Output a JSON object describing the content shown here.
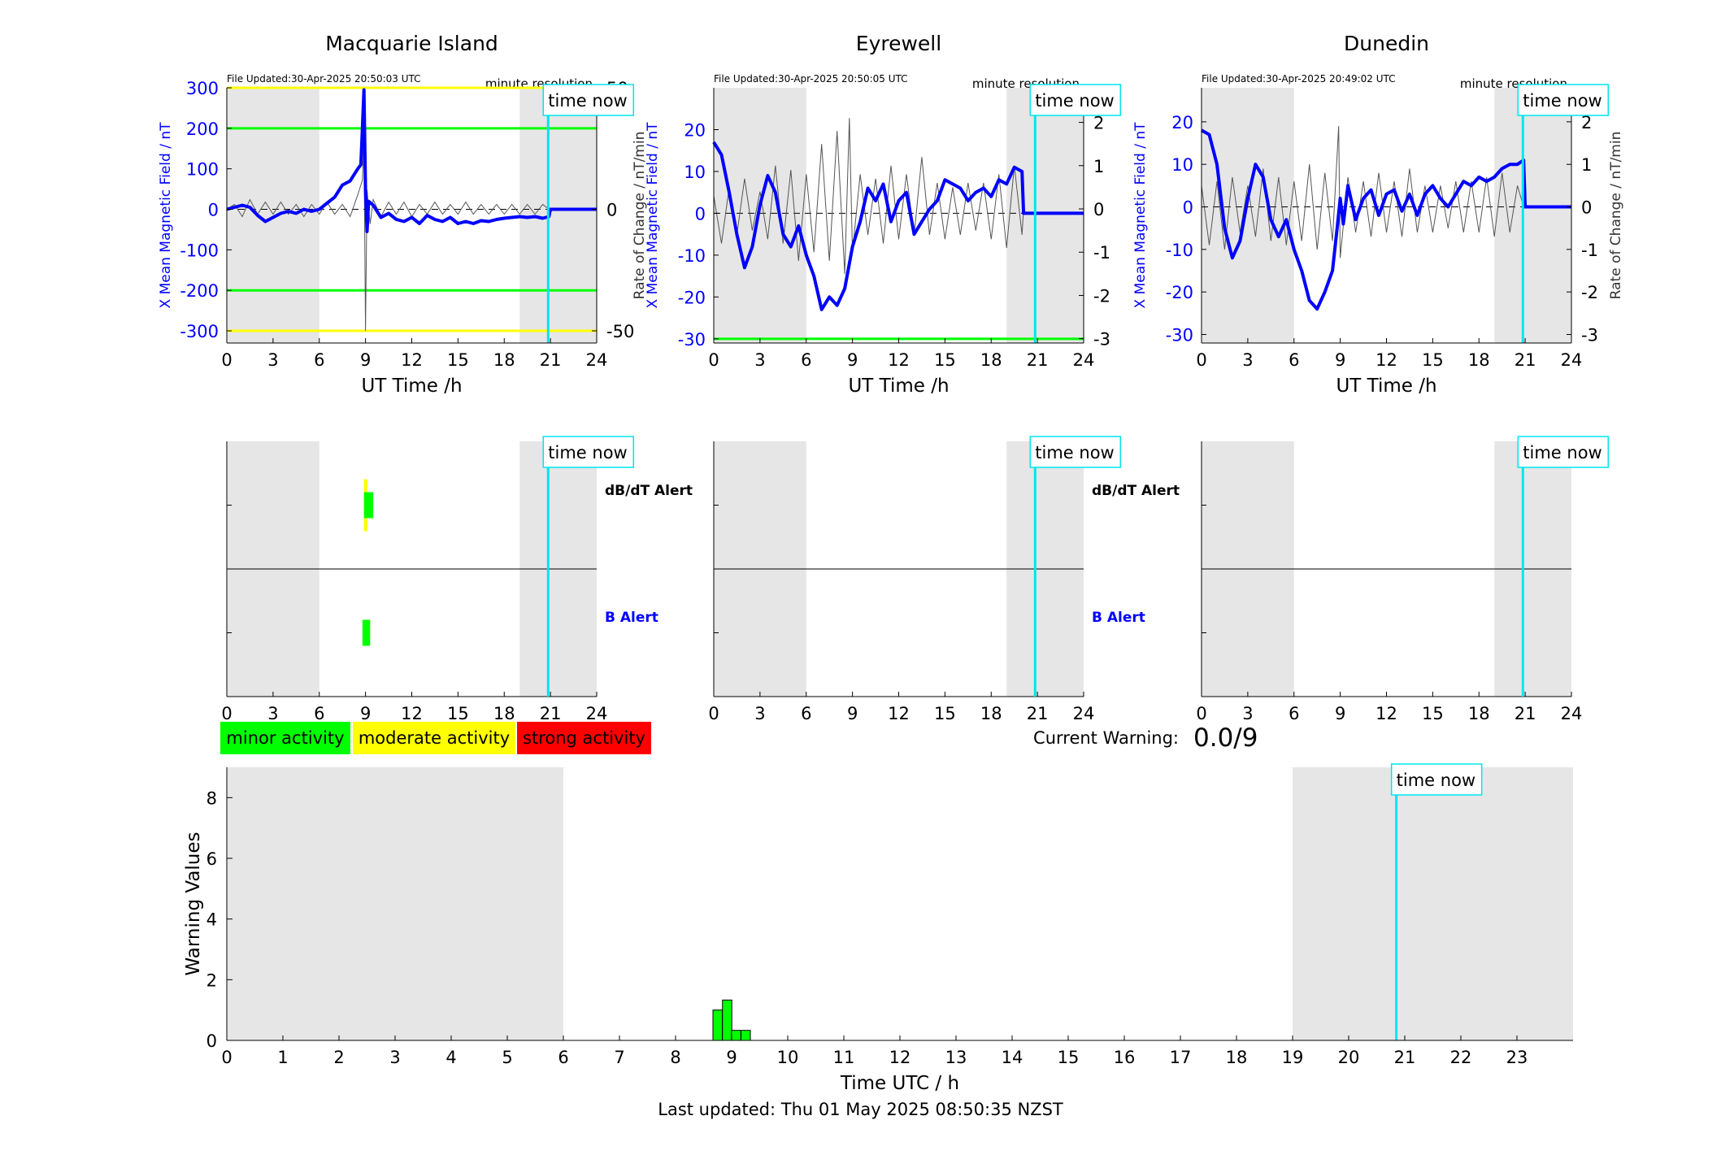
{
  "page": {
    "footer": "Last updated: Thu 01 May 2025 08:50:35 NZST"
  },
  "labels": {
    "time_now": "time now",
    "minute_resolution": "minute resolution",
    "x_axis_label": "UT Time /h",
    "dbdt_alert": "dB/dT Alert",
    "b_alert": "B Alert",
    "current_warning_label": "Current Warning:",
    "current_warning_value": "0.0/9"
  },
  "legend": [
    {
      "label": "minor activity",
      "color": "#00ff00"
    },
    {
      "label": "moderate activity",
      "color": "#ffff00"
    },
    {
      "label": "strong activity",
      "color": "#ff0000"
    }
  ],
  "colors": {
    "field": "#0000ff",
    "rate": "#555555",
    "shade": "#e6e6e6",
    "time_now": "#00e5ee",
    "green_line": "#00ff00",
    "yellow_line": "#ffff00",
    "minor": "#00ff00",
    "moderate": "#ffff00"
  },
  "chart_data": [
    {
      "type": "line",
      "title": "Macquarie Island",
      "file_updated": "File Updated:30-Apr-2025 20:50:03 UTC",
      "xlabel": "UT Time /h",
      "ylabel_left": "X Mean Magnetic Field / nT",
      "ylabel_right": "",
      "xlim": [
        0,
        24
      ],
      "x_ticks": [
        0,
        3,
        6,
        9,
        12,
        15,
        18,
        21,
        24
      ],
      "ylim_left": [
        -330,
        300
      ],
      "y_ticks_left": [
        -300,
        -200,
        -100,
        0,
        100,
        200,
        300
      ],
      "ylim_right": [
        -55,
        50
      ],
      "y_ticks_right": [
        -50,
        0,
        50
      ],
      "shaded_hours": [
        [
          0,
          6
        ],
        [
          19,
          24
        ]
      ],
      "time_now": 20.85,
      "threshold_lines": [
        {
          "value": 300,
          "color": "yellow"
        },
        {
          "value": 200,
          "color": "green"
        },
        {
          "value": -200,
          "color": "green"
        },
        {
          "value": -300,
          "color": "yellow"
        }
      ],
      "field_series": [
        [
          0,
          0
        ],
        [
          0.5,
          5
        ],
        [
          1,
          10
        ],
        [
          1.5,
          5
        ],
        [
          2,
          -15
        ],
        [
          2.5,
          -30
        ],
        [
          3,
          -20
        ],
        [
          3.5,
          -10
        ],
        [
          4,
          -5
        ],
        [
          4.5,
          -10
        ],
        [
          5,
          0
        ],
        [
          5.5,
          -5
        ],
        [
          6,
          0
        ],
        [
          6.5,
          15
        ],
        [
          7,
          30
        ],
        [
          7.5,
          60
        ],
        [
          8,
          70
        ],
        [
          8.5,
          100
        ],
        [
          8.7,
          110
        ],
        [
          8.8,
          200
        ],
        [
          8.9,
          295
        ],
        [
          9.0,
          50
        ],
        [
          9.1,
          -55
        ],
        [
          9.2,
          20
        ],
        [
          9.5,
          10
        ],
        [
          10,
          -20
        ],
        [
          10.5,
          -10
        ],
        [
          11,
          -25
        ],
        [
          11.5,
          -30
        ],
        [
          12,
          -20
        ],
        [
          12.5,
          -35
        ],
        [
          13,
          -15
        ],
        [
          13.5,
          -25
        ],
        [
          14,
          -30
        ],
        [
          14.5,
          -20
        ],
        [
          15,
          -35
        ],
        [
          15.5,
          -30
        ],
        [
          16,
          -35
        ],
        [
          16.5,
          -28
        ],
        [
          17,
          -30
        ],
        [
          17.5,
          -25
        ],
        [
          18,
          -22
        ],
        [
          18.5,
          -20
        ],
        [
          19,
          -18
        ],
        [
          19.5,
          -20
        ],
        [
          20,
          -18
        ],
        [
          20.5,
          -22
        ],
        [
          20.9,
          -18
        ],
        [
          21,
          0
        ],
        [
          24,
          0
        ]
      ],
      "rate_series": [
        [
          0,
          0
        ],
        [
          0.5,
          2
        ],
        [
          1,
          -3
        ],
        [
          1.5,
          4
        ],
        [
          2,
          -2
        ],
        [
          2.5,
          3
        ],
        [
          3,
          -2
        ],
        [
          3.5,
          3
        ],
        [
          4,
          -2
        ],
        [
          4.5,
          2
        ],
        [
          5,
          -3
        ],
        [
          5.5,
          2
        ],
        [
          6,
          -2
        ],
        [
          6.5,
          3
        ],
        [
          7,
          -2
        ],
        [
          7.5,
          2
        ],
        [
          8,
          -3
        ],
        [
          8.5,
          6
        ],
        [
          8.8,
          12
        ],
        [
          8.9,
          30
        ],
        [
          9.0,
          -50
        ],
        [
          9.1,
          8
        ],
        [
          9.3,
          -6
        ],
        [
          9.5,
          4
        ],
        [
          10,
          -3
        ],
        [
          10.5,
          3
        ],
        [
          11,
          -2
        ],
        [
          11.5,
          3
        ],
        [
          12,
          -3
        ],
        [
          12.5,
          2
        ],
        [
          13,
          -2
        ],
        [
          13.5,
          3
        ],
        [
          14,
          -2
        ],
        [
          14.5,
          2
        ],
        [
          15,
          -2
        ],
        [
          15.5,
          3
        ],
        [
          16,
          -2
        ],
        [
          16.5,
          2
        ],
        [
          17,
          -2
        ],
        [
          17.5,
          2
        ],
        [
          18,
          -2
        ],
        [
          18.5,
          2
        ],
        [
          19,
          -2
        ],
        [
          19.5,
          2
        ],
        [
          20,
          -2
        ],
        [
          20.5,
          2
        ],
        [
          20.9,
          0
        ]
      ],
      "alerts": {
        "dbdt": [
          {
            "start": 8.9,
            "end": 9.1,
            "level": "moderate"
          },
          {
            "start": 8.9,
            "end": 9.5,
            "level": "minor"
          }
        ],
        "b": [
          {
            "start": 8.8,
            "end": 9.3,
            "level": "minor"
          }
        ]
      }
    },
    {
      "type": "line",
      "title": "Eyrewell",
      "file_updated": "File Updated:30-Apr-2025 20:50:05 UTC",
      "xlabel": "UT Time /h",
      "ylabel_left": "X Mean Magnetic Field / nT",
      "ylabel_right": "Rate of Change / nT/min",
      "xlim": [
        0,
        24
      ],
      "x_ticks": [
        0,
        3,
        6,
        9,
        12,
        15,
        18,
        21,
        24
      ],
      "ylim_left": [
        -31,
        30
      ],
      "y_ticks_left": [
        -30,
        -20,
        -10,
        0,
        10,
        20
      ],
      "ylim_right": [
        -3.1,
        2.8
      ],
      "y_ticks_right": [
        -3,
        -2,
        -1,
        0,
        1,
        2
      ],
      "shaded_hours": [
        [
          0,
          6
        ],
        [
          19,
          24
        ]
      ],
      "time_now": 20.85,
      "threshold_lines": [
        {
          "value": -30,
          "color": "green"
        }
      ],
      "field_series": [
        [
          0,
          17
        ],
        [
          0.5,
          14
        ],
        [
          1,
          5
        ],
        [
          1.5,
          -5
        ],
        [
          2,
          -13
        ],
        [
          2.5,
          -8
        ],
        [
          3,
          2
        ],
        [
          3.5,
          9
        ],
        [
          4,
          5
        ],
        [
          4.5,
          -5
        ],
        [
          5,
          -8
        ],
        [
          5.5,
          -3
        ],
        [
          6,
          -10
        ],
        [
          6.5,
          -15
        ],
        [
          7,
          -23
        ],
        [
          7.5,
          -20
        ],
        [
          8,
          -22
        ],
        [
          8.5,
          -18
        ],
        [
          9,
          -8
        ],
        [
          9.5,
          -2
        ],
        [
          10,
          6
        ],
        [
          10.5,
          3
        ],
        [
          11,
          7
        ],
        [
          11.5,
          -2
        ],
        [
          12,
          3
        ],
        [
          12.5,
          5
        ],
        [
          13,
          -5
        ],
        [
          13.5,
          -2
        ],
        [
          14,
          1
        ],
        [
          14.5,
          3
        ],
        [
          15,
          8
        ],
        [
          15.5,
          7
        ],
        [
          16,
          6
        ],
        [
          16.5,
          3
        ],
        [
          17,
          5
        ],
        [
          17.5,
          6
        ],
        [
          18,
          4
        ],
        [
          18.5,
          8
        ],
        [
          19,
          7
        ],
        [
          19.5,
          11
        ],
        [
          20,
          10
        ],
        [
          20.1,
          0
        ],
        [
          24,
          0
        ]
      ],
      "rate_series": [
        [
          0,
          0.3
        ],
        [
          0.5,
          -0.8
        ],
        [
          1,
          0.5
        ],
        [
          1.5,
          -0.6
        ],
        [
          2,
          0.7
        ],
        [
          2.5,
          -0.5
        ],
        [
          3,
          0.4
        ],
        [
          3.5,
          -0.7
        ],
        [
          4,
          1.0
        ],
        [
          4.5,
          -0.8
        ],
        [
          5,
          0.9
        ],
        [
          5.5,
          -1.2
        ],
        [
          6,
          0.8
        ],
        [
          6.5,
          -1.0
        ],
        [
          7,
          1.5
        ],
        [
          7.5,
          -1.2
        ],
        [
          8,
          1.8
        ],
        [
          8.5,
          -1.5
        ],
        [
          8.8,
          2.1
        ],
        [
          9,
          -1.0
        ],
        [
          9.5,
          0.8
        ],
        [
          10,
          -0.6
        ],
        [
          10.5,
          0.7
        ],
        [
          11,
          -0.8
        ],
        [
          11.5,
          1.0
        ],
        [
          12,
          -0.7
        ],
        [
          12.5,
          0.8
        ],
        [
          13,
          -0.6
        ],
        [
          13.5,
          1.2
        ],
        [
          14,
          -0.6
        ],
        [
          14.5,
          0.6
        ],
        [
          15,
          -0.7
        ],
        [
          15.5,
          0.5
        ],
        [
          16,
          -0.6
        ],
        [
          16.5,
          0.6
        ],
        [
          17,
          -0.5
        ],
        [
          17.5,
          0.6
        ],
        [
          18,
          -0.7
        ],
        [
          18.5,
          0.8
        ],
        [
          19,
          -0.9
        ],
        [
          19.5,
          1.0
        ],
        [
          20,
          -0.6
        ],
        [
          20.1,
          0
        ]
      ],
      "alerts": {
        "dbdt": [],
        "b": []
      }
    },
    {
      "type": "line",
      "title": "Dunedin",
      "file_updated": "File Updated:30-Apr-2025 20:49:02 UTC",
      "xlabel": "UT Time /h",
      "ylabel_left": "X Mean Magnetic Field / nT",
      "ylabel_right": "Rate of Change / nT/min",
      "xlim": [
        0,
        24
      ],
      "x_ticks": [
        0,
        3,
        6,
        9,
        12,
        15,
        18,
        21,
        24
      ],
      "ylim_left": [
        -32,
        28
      ],
      "y_ticks_left": [
        -30,
        -20,
        -10,
        0,
        10,
        20
      ],
      "ylim_right": [
        -3.2,
        2.8
      ],
      "y_ticks_right": [
        -3,
        -2,
        -1,
        0,
        1,
        2
      ],
      "shaded_hours": [
        [
          0,
          6
        ],
        [
          19,
          24
        ]
      ],
      "time_now": 20.85,
      "threshold_lines": [],
      "field_series": [
        [
          0,
          18
        ],
        [
          0.5,
          17
        ],
        [
          1,
          10
        ],
        [
          1.5,
          -5
        ],
        [
          2,
          -12
        ],
        [
          2.5,
          -8
        ],
        [
          3,
          2
        ],
        [
          3.5,
          10
        ],
        [
          4,
          7
        ],
        [
          4.5,
          -3
        ],
        [
          5,
          -7
        ],
        [
          5.5,
          -3
        ],
        [
          6,
          -10
        ],
        [
          6.5,
          -15
        ],
        [
          7,
          -22
        ],
        [
          7.5,
          -24
        ],
        [
          8,
          -20
        ],
        [
          8.5,
          -15
        ],
        [
          8.8,
          -5
        ],
        [
          9,
          2
        ],
        [
          9.2,
          -4
        ],
        [
          9.5,
          5
        ],
        [
          10,
          -3
        ],
        [
          10.5,
          2
        ],
        [
          11,
          4
        ],
        [
          11.5,
          -2
        ],
        [
          12,
          3
        ],
        [
          12.5,
          4
        ],
        [
          13,
          -1
        ],
        [
          13.5,
          3
        ],
        [
          14,
          -2
        ],
        [
          14.5,
          3
        ],
        [
          15,
          5
        ],
        [
          15.5,
          2
        ],
        [
          16,
          0
        ],
        [
          16.5,
          3
        ],
        [
          17,
          6
        ],
        [
          17.5,
          5
        ],
        [
          18,
          7
        ],
        [
          18.5,
          6
        ],
        [
          19,
          7
        ],
        [
          19.5,
          9
        ],
        [
          20,
          10
        ],
        [
          20.5,
          10
        ],
        [
          20.9,
          11
        ],
        [
          21,
          0
        ],
        [
          24,
          0
        ]
      ],
      "rate_series": [
        [
          0,
          0.5
        ],
        [
          0.5,
          -0.9
        ],
        [
          1,
          0.6
        ],
        [
          1.5,
          -1.0
        ],
        [
          2,
          0.7
        ],
        [
          2.5,
          -0.6
        ],
        [
          3,
          0.5
        ],
        [
          3.5,
          -0.7
        ],
        [
          4,
          0.9
        ],
        [
          4.5,
          -0.8
        ],
        [
          5,
          0.7
        ],
        [
          5.5,
          -0.9
        ],
        [
          6,
          0.6
        ],
        [
          6.5,
          -0.8
        ],
        [
          7,
          1.0
        ],
        [
          7.5,
          -1.0
        ],
        [
          8,
          0.8
        ],
        [
          8.5,
          -0.8
        ],
        [
          8.9,
          1.9
        ],
        [
          9,
          -1.2
        ],
        [
          9.5,
          0.7
        ],
        [
          10,
          -0.6
        ],
        [
          10.5,
          0.6
        ],
        [
          11,
          -0.7
        ],
        [
          11.5,
          0.8
        ],
        [
          12,
          -0.6
        ],
        [
          12.5,
          0.6
        ],
        [
          13,
          -0.7
        ],
        [
          13.5,
          0.9
        ],
        [
          14,
          -0.6
        ],
        [
          14.5,
          0.5
        ],
        [
          15,
          -0.6
        ],
        [
          15.5,
          0.5
        ],
        [
          16,
          -0.5
        ],
        [
          16.5,
          0.6
        ],
        [
          17,
          -0.6
        ],
        [
          17.5,
          0.6
        ],
        [
          18,
          -0.6
        ],
        [
          18.5,
          0.7
        ],
        [
          19,
          -0.7
        ],
        [
          19.5,
          0.8
        ],
        [
          20,
          -0.6
        ],
        [
          20.5,
          0.5
        ],
        [
          20.9,
          0
        ]
      ],
      "alerts": {
        "dbdt": [],
        "b": []
      }
    },
    {
      "type": "bar",
      "title": "",
      "xlabel": "Time UTC / h",
      "ylabel": "Warning Values",
      "xlim": [
        0,
        24
      ],
      "x_ticks": [
        0,
        1,
        2,
        3,
        4,
        5,
        6,
        7,
        8,
        9,
        10,
        11,
        12,
        13,
        14,
        15,
        16,
        17,
        18,
        19,
        20,
        21,
        22,
        23
      ],
      "ylim": [
        0,
        9
      ],
      "y_ticks": [
        0,
        2,
        4,
        6,
        8
      ],
      "shaded_hours": [
        [
          0,
          6
        ],
        [
          19,
          24
        ]
      ],
      "time_now": 20.85,
      "bars": [
        {
          "x": 8.75,
          "value": 1.0
        },
        {
          "x": 8.92,
          "value": 1.33
        },
        {
          "x": 9.08,
          "value": 0.33
        },
        {
          "x": 9.25,
          "value": 0.33
        }
      ]
    }
  ]
}
